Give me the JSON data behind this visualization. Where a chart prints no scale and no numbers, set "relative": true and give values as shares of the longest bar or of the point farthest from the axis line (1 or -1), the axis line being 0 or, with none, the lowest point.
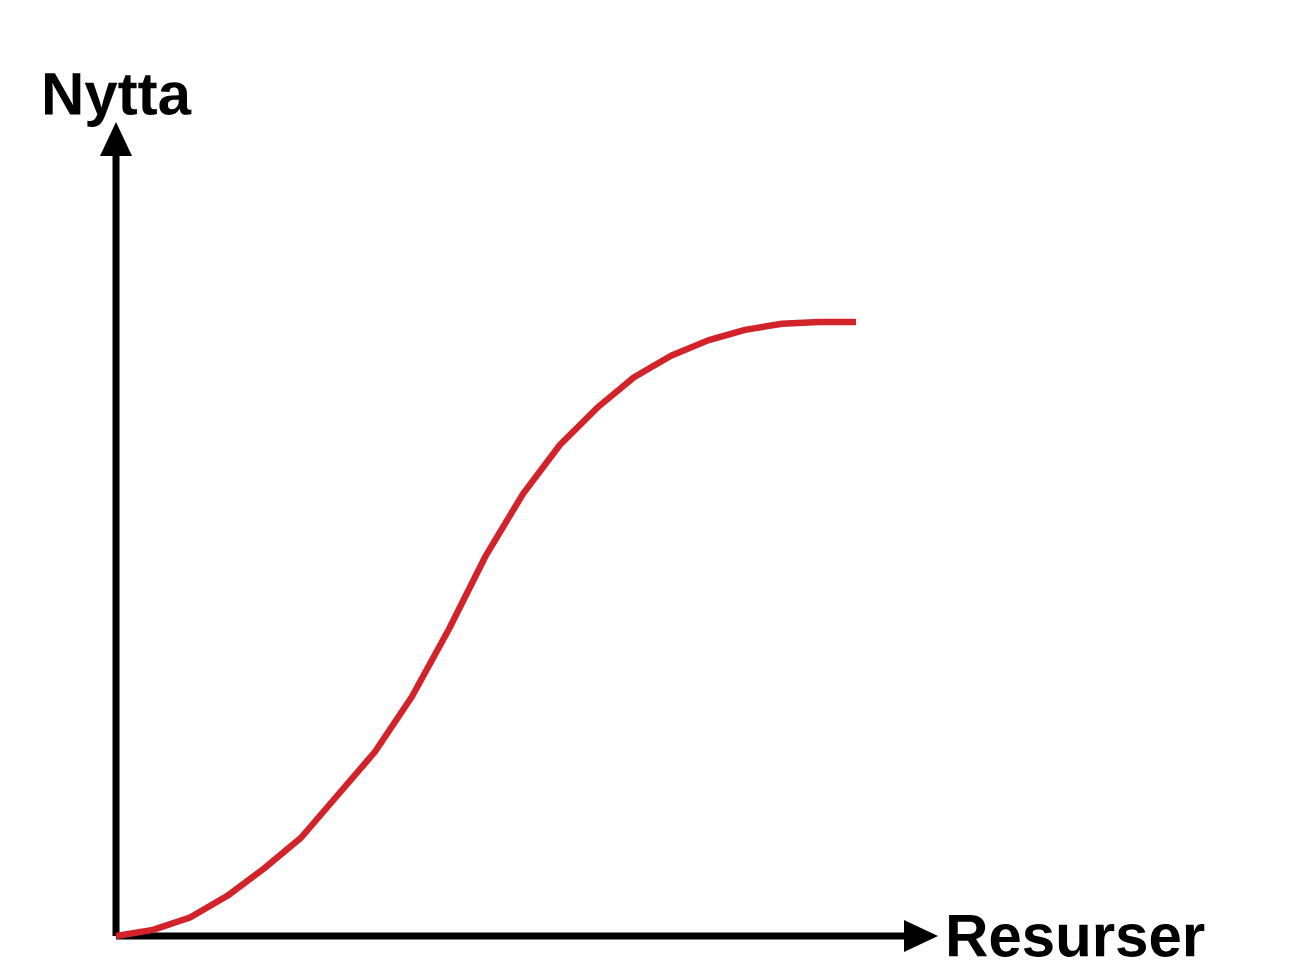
{
  "chart_data": {
    "type": "line",
    "relative": true,
    "xlabel": "Resurser",
    "ylabel": "Nytta",
    "categories": [
      null,
      null,
      null,
      null,
      null,
      null,
      null,
      null,
      null,
      null,
      null,
      null,
      null,
      null,
      null,
      null,
      null,
      null,
      null,
      null,
      null
    ],
    "series": [
      {
        "color": "#d2232a",
        "values": [
          0,
          0.01,
          0.03,
          0.065,
          0.11,
          0.16,
          0.23,
          0.3,
          0.39,
          0.5,
          0.62,
          0.72,
          0.8,
          0.86,
          0.91,
          0.945,
          0.97,
          0.987,
          0.997,
          1,
          1
        ]
      }
    ],
    "marker": "none",
    "line_style": "solid"
  }
}
